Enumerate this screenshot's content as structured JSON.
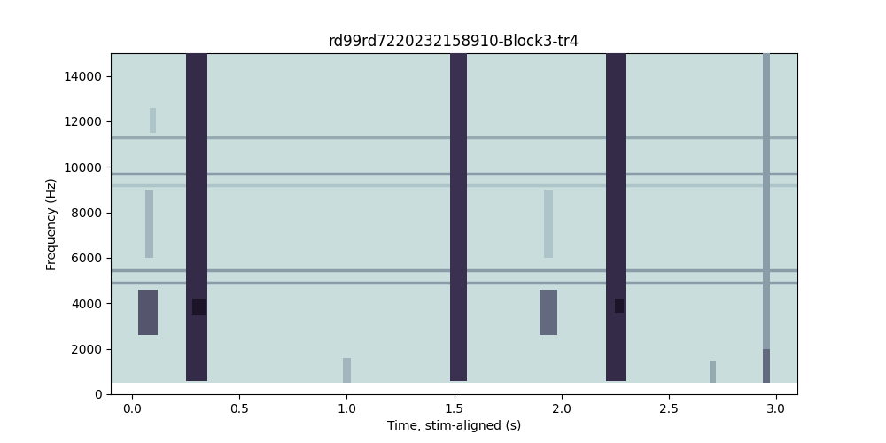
{
  "chart_data": {
    "type": "spectrogram",
    "title": "rd99rd7220232158910-Block3-tr4",
    "x_label": "Time, stim-aligned (s)",
    "y_label": "Frequency (Hz)",
    "xlim": [
      -0.1,
      3.1
    ],
    "xticks": [
      0.0,
      0.5,
      1.0,
      1.5,
      2.0,
      2.5,
      3.0
    ],
    "ylim": [
      0,
      15000
    ],
    "yticks": [
      0,
      2000,
      4000,
      6000,
      8000,
      10000,
      12000,
      14000
    ],
    "band": [
      500,
      15000
    ],
    "background_level": 0.18,
    "tones": [
      {
        "freq": 11300,
        "level": 0.4
      },
      {
        "freq": 9700,
        "level": 0.45
      },
      {
        "freq": 9200,
        "level": 0.3
      },
      {
        "freq": 5450,
        "level": 0.45
      },
      {
        "freq": 4900,
        "level": 0.45
      }
    ],
    "events": [
      {
        "t_start": 0.03,
        "t_end": 0.12,
        "f_low": 2600,
        "f_high": 4600,
        "level": 0.65
      },
      {
        "t_start": 0.06,
        "t_end": 0.1,
        "f_low": 6000,
        "f_high": 9000,
        "level": 0.35
      },
      {
        "t_start": 0.08,
        "t_end": 0.11,
        "f_low": 11500,
        "f_high": 12600,
        "level": 0.3
      },
      {
        "t_start": 0.25,
        "t_end": 0.35,
        "f_low": 600,
        "f_high": 15000,
        "level": 0.8
      },
      {
        "t_start": 0.28,
        "t_end": 0.34,
        "f_low": 3500,
        "f_high": 4200,
        "level": 1.0
      },
      {
        "t_start": 0.98,
        "t_end": 1.02,
        "f_low": 500,
        "f_high": 1600,
        "level": 0.35
      },
      {
        "t_start": 1.48,
        "t_end": 1.56,
        "f_low": 600,
        "f_high": 15000,
        "level": 0.75
      },
      {
        "t_start": 1.9,
        "t_end": 1.98,
        "f_low": 2600,
        "f_high": 4600,
        "level": 0.6
      },
      {
        "t_start": 1.92,
        "t_end": 1.96,
        "f_low": 6000,
        "f_high": 9000,
        "level": 0.3
      },
      {
        "t_start": 2.21,
        "t_end": 2.3,
        "f_low": 600,
        "f_high": 15000,
        "level": 0.8
      },
      {
        "t_start": 2.25,
        "t_end": 2.29,
        "f_low": 3600,
        "f_high": 4200,
        "level": 1.0
      },
      {
        "t_start": 2.69,
        "t_end": 2.72,
        "f_low": 500,
        "f_high": 1500,
        "level": 0.4
      },
      {
        "t_start": 2.94,
        "t_end": 2.97,
        "f_low": 500,
        "f_high": 15000,
        "level": 0.45
      },
      {
        "t_start": 2.94,
        "t_end": 2.97,
        "f_low": 500,
        "f_high": 2000,
        "level": 0.6
      }
    ]
  }
}
